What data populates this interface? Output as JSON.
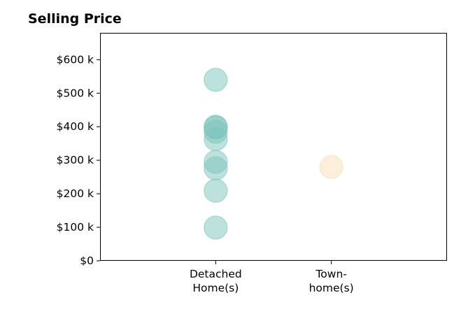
{
  "chart_data": {
    "type": "scatter",
    "title": "Selling Price",
    "xlabel": "",
    "ylabel": "",
    "categories": [
      "Detached\nHome(s)",
      "Town-\nhome(s)"
    ],
    "xlim": [
      0,
      3
    ],
    "ylim": [
      0,
      680000
    ],
    "yticks": [
      {
        "value": 0,
        "label": "$0"
      },
      {
        "value": 100000,
        "label": "$100 k"
      },
      {
        "value": 200000,
        "label": "$200 k"
      },
      {
        "value": 300000,
        "label": "$300 k"
      },
      {
        "value": 400000,
        "label": "$400 k"
      },
      {
        "value": 500000,
        "label": "$500 k"
      },
      {
        "value": 600000,
        "label": "$600 k"
      }
    ],
    "grid": false,
    "series": [
      {
        "category_index": 0,
        "color": "#7bc4bc",
        "values": [
          540000,
          400000,
          398000,
          385000,
          363000,
          295000,
          276000,
          209000,
          99000
        ]
      },
      {
        "category_index": 1,
        "color": "#f5dfb3",
        "values": [
          280000
        ]
      }
    ]
  }
}
